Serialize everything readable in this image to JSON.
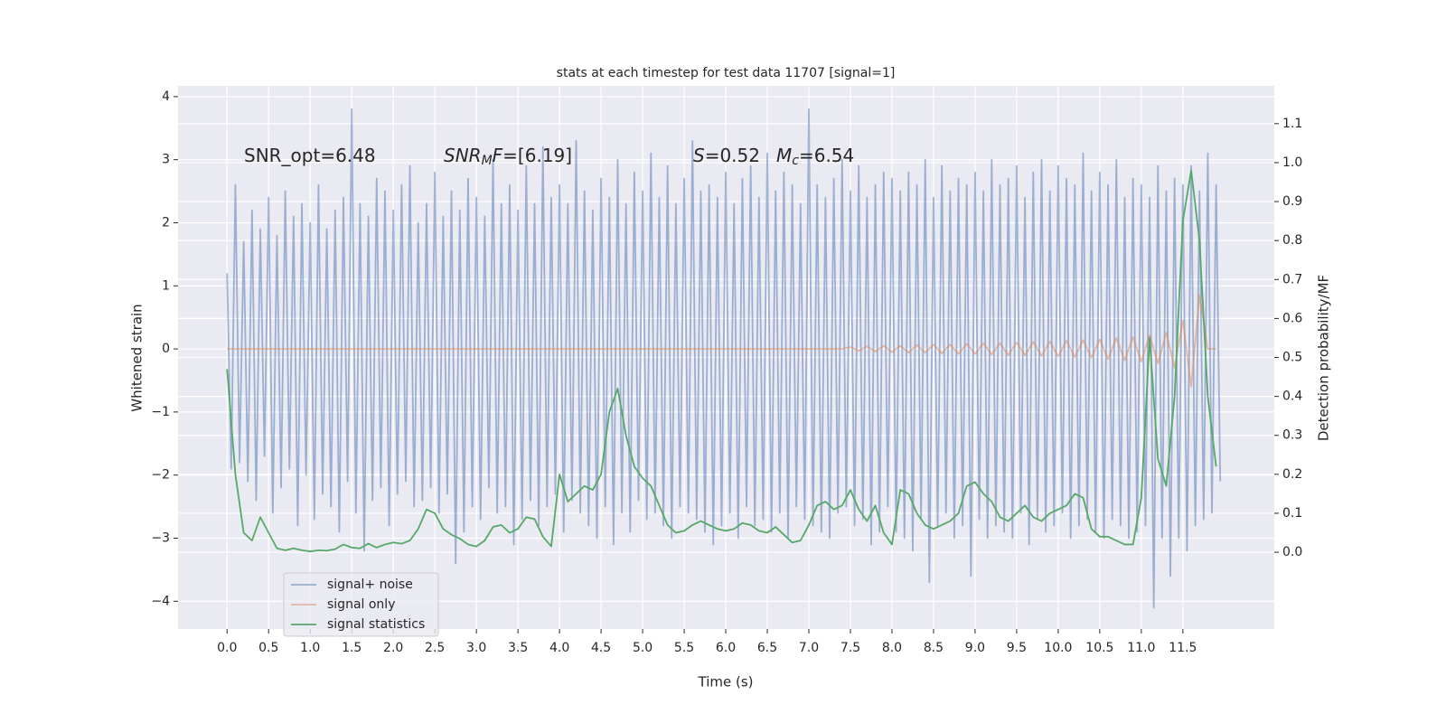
{
  "chart_data": {
    "type": "line",
    "title": "stats at each timestep for test data 11707 [signal=1]",
    "xlabel": "Time (s)",
    "ylabel": "Whitened strain",
    "y2label": "Detection probability/MF",
    "xlim": [
      -0.59,
      12.6
    ],
    "ylim": [
      -4.44,
      4.17
    ],
    "y2lim": [
      -0.197,
      1.197
    ],
    "xticks": [
      {
        "value": 0,
        "label": "0.0"
      },
      0.5,
      {
        "value": 1,
        "label": "1.0"
      },
      1.5,
      {
        "value": 2,
        "label": "2.0"
      },
      2.5,
      {
        "value": 3,
        "label": "3.0"
      },
      3.5,
      {
        "value": 4,
        "label": "4.0"
      },
      4.5,
      {
        "value": 5,
        "label": "5.0"
      },
      5.5,
      {
        "value": 6,
        "label": "6.0"
      },
      6.5,
      {
        "value": 7,
        "label": "7.0"
      },
      7.5,
      {
        "value": 8,
        "label": "8.0"
      },
      8.5,
      {
        "value": 9,
        "label": "9.0"
      },
      9.5,
      {
        "value": 10,
        "label": "10.0"
      },
      10.5,
      {
        "value": 11,
        "label": "11.0"
      },
      11.5
    ],
    "yticks": [
      {
        "value": -4,
        "label": "−4"
      },
      {
        "value": -3,
        "label": "−3"
      },
      {
        "value": -2,
        "label": "−2"
      },
      {
        "value": -1,
        "label": "−1"
      },
      0,
      1,
      2,
      3,
      4
    ],
    "y2ticks": [
      {
        "value": 0,
        "label": "0.0"
      },
      0.1,
      0.2,
      0.3,
      0.4,
      0.5,
      0.6,
      0.7,
      0.8,
      0.9,
      {
        "value": 1,
        "label": "1.0"
      },
      1.1
    ],
    "grid": true,
    "legend": "lower left",
    "annotations": [
      [
        {
          "text": "SNR_opt=6.48"
        }
      ],
      [
        {
          "text": "SNR",
          "style": "italic"
        },
        {
          "text": "M",
          "style": "sub"
        },
        {
          "text": "F",
          "style": "italic"
        },
        {
          "text": "=[6.19]"
        }
      ],
      [
        {
          "text": "S",
          "style": "italic"
        },
        {
          "text": "=0.52"
        }
      ],
      [
        {
          "text": "M",
          "style": "italic"
        },
        {
          "text": "c",
          "style": "sub"
        },
        {
          "text": "=6.54"
        }
      ]
    ],
    "series": [
      {
        "name": "signal+ noise",
        "color": "#4c72b0",
        "alpha": 0.5,
        "x": [
          0,
          0.05,
          0.1,
          0.15,
          0.2,
          0.25,
          0.3,
          0.35,
          0.4,
          0.45,
          0.5,
          0.55,
          0.6,
          0.65,
          0.7,
          0.75,
          0.8,
          0.85,
          0.9,
          0.95,
          1,
          1.05,
          1.1,
          1.15,
          1.2,
          1.25,
          1.3,
          1.35,
          1.4,
          1.45,
          1.5,
          1.55,
          1.6,
          1.65,
          1.7,
          1.75,
          1.8,
          1.85,
          1.9,
          1.95,
          2,
          2.05,
          2.1,
          2.15,
          2.2,
          2.25,
          2.3,
          2.35,
          2.4,
          2.45,
          2.5,
          2.55,
          2.6,
          2.65,
          2.7,
          2.75,
          2.8,
          2.85,
          2.9,
          2.95,
          3,
          3.05,
          3.1,
          3.15,
          3.2,
          3.25,
          3.3,
          3.35,
          3.4,
          3.45,
          3.5,
          3.55,
          3.6,
          3.65,
          3.7,
          3.75,
          3.8,
          3.85,
          3.9,
          3.95,
          4,
          4.05,
          4.1,
          4.15,
          4.2,
          4.25,
          4.3,
          4.35,
          4.4,
          4.45,
          4.5,
          4.55,
          4.6,
          4.65,
          4.7,
          4.75,
          4.8,
          4.85,
          4.9,
          4.95,
          5,
          5.05,
          5.1,
          5.15,
          5.2,
          5.25,
          5.3,
          5.35,
          5.4,
          5.45,
          5.5,
          5.55,
          5.6,
          5.65,
          5.7,
          5.75,
          5.8,
          5.85,
          5.9,
          5.95,
          6,
          6.05,
          6.1,
          6.15,
          6.2,
          6.25,
          6.3,
          6.35,
          6.4,
          6.45,
          6.5,
          6.55,
          6.6,
          6.65,
          6.7,
          6.75,
          6.8,
          6.85,
          6.9,
          6.95,
          7,
          7.05,
          7.1,
          7.15,
          7.2,
          7.25,
          7.3,
          7.35,
          7.4,
          7.45,
          7.5,
          7.55,
          7.6,
          7.65,
          7.7,
          7.75,
          7.8,
          7.85,
          7.9,
          7.95,
          8,
          8.05,
          8.1,
          8.15,
          8.2,
          8.25,
          8.3,
          8.35,
          8.4,
          8.45,
          8.5,
          8.55,
          8.6,
          8.65,
          8.7,
          8.75,
          8.8,
          8.85,
          8.9,
          8.95,
          9,
          9.05,
          9.1,
          9.15,
          9.2,
          9.25,
          9.3,
          9.35,
          9.4,
          9.45,
          9.5,
          9.55,
          9.6,
          9.65,
          9.7,
          9.75,
          9.8,
          9.85,
          9.9,
          9.95,
          10,
          10.05,
          10.1,
          10.15,
          10.2,
          10.25,
          10.3,
          10.35,
          10.4,
          10.45,
          10.5,
          10.55,
          10.6,
          10.65,
          10.7,
          10.75,
          10.8,
          10.85,
          10.9,
          10.95,
          11,
          11.05,
          11.1,
          11.15,
          11.2,
          11.25,
          11.3,
          11.35,
          11.4,
          11.45,
          11.5,
          11.55,
          11.6,
          11.65,
          11.7,
          11.75,
          11.8,
          11.85,
          11.9,
          11.95
        ],
        "values": [
          1.2,
          -1.9,
          2.6,
          -1.8,
          1.7,
          -2.1,
          2.2,
          -2.4,
          1.9,
          -1.7,
          2.4,
          -2.6,
          1.8,
          -2.2,
          2.5,
          -1.9,
          2.1,
          -2.8,
          2.3,
          -2.0,
          2.0,
          -2.7,
          2.6,
          -2.3,
          1.9,
          -2.5,
          2.2,
          -2.9,
          2.4,
          -2.1,
          3.8,
          -2.6,
          2.3,
          -3.2,
          2.1,
          -2.4,
          2.7,
          -2.2,
          2.5,
          -2.8,
          2.2,
          -2.3,
          2.6,
          -2.1,
          2.9,
          -2.5,
          2.0,
          -2.4,
          2.3,
          -2.2,
          2.8,
          -2.6,
          2.1,
          -2.3,
          2.5,
          -3.4,
          2.2,
          -2.9,
          2.7,
          -2.5,
          2.4,
          -2.7,
          2.1,
          -2.2,
          3.0,
          -2.6,
          2.3,
          -2.5,
          2.6,
          -3.1,
          2.2,
          -2.7,
          2.9,
          -2.4,
          2.3,
          -2.8,
          3.2,
          -2.5,
          2.4,
          -2.3,
          2.6,
          -2.9,
          2.3,
          -2.4,
          3.3,
          -2.6,
          2.5,
          -2.8,
          2.2,
          -3.0,
          2.7,
          -2.5,
          2.4,
          -3.1,
          3.0,
          -2.6,
          2.3,
          -2.9,
          2.8,
          -2.4,
          2.5,
          -2.7,
          3.1,
          -2.6,
          2.4,
          -2.8,
          2.9,
          -3.0,
          2.3,
          -2.5,
          2.7,
          -2.6,
          3.3,
          -2.7,
          2.5,
          -2.9,
          2.6,
          -3.1,
          2.4,
          -2.8,
          2.8,
          -2.6,
          2.3,
          -3.0,
          2.7,
          -2.5,
          2.9,
          -2.8,
          2.4,
          -2.7,
          3.1,
          -2.9,
          2.5,
          -2.6,
          2.8,
          -3.0,
          2.6,
          -2.5,
          2.3,
          -2.7,
          3.8,
          -2.8,
          2.6,
          -2.9,
          2.4,
          -3.0,
          2.7,
          -2.6,
          3.0,
          -2.5,
          2.5,
          -2.8,
          2.9,
          -2.7,
          2.4,
          -3.1,
          2.6,
          -2.9,
          2.8,
          -2.5,
          2.7,
          -2.9,
          2.5,
          -3.0,
          2.8,
          -3.2,
          2.6,
          -2.7,
          3.0,
          -3.7,
          2.4,
          -2.8,
          2.9,
          -2.6,
          2.5,
          -3.0,
          2.7,
          -2.8,
          2.6,
          -3.6,
          2.8,
          -2.7,
          2.5,
          -3.0,
          3.0,
          -2.8,
          2.6,
          -2.9,
          2.7,
          -3.0,
          2.9,
          -2.6,
          2.4,
          -3.1,
          2.8,
          -2.7,
          3.0,
          -2.9,
          2.5,
          -2.8,
          2.9,
          -2.6,
          2.7,
          -3.0,
          2.6,
          -2.8,
          3.1,
          -2.7,
          2.5,
          -2.9,
          2.8,
          -3.0,
          2.6,
          -2.7,
          3.0,
          -2.8,
          2.4,
          -3.0,
          2.7,
          -2.9,
          2.6,
          -2.8,
          2.4,
          -4.1,
          2.9,
          -3.0,
          2.5,
          -3.6,
          2.7,
          -3.0,
          2.6,
          -3.2,
          2.9,
          -2.8,
          2.5,
          -2.7,
          3.1,
          -2.6,
          2.6,
          -2.1
        ]
      },
      {
        "name": "signal only",
        "color": "#dd8452",
        "alpha": 0.5,
        "x": [
          0,
          0.1,
          0.2,
          0.3,
          0.4,
          0.5,
          0.6,
          0.7,
          0.8,
          0.9,
          1,
          1.1,
          1.2,
          1.3,
          1.4,
          1.5,
          1.6,
          1.7,
          1.8,
          1.9,
          2,
          2.1,
          2.2,
          2.3,
          2.4,
          2.5,
          2.6,
          2.7,
          2.8,
          2.9,
          3,
          3.1,
          3.2,
          3.3,
          3.4,
          3.5,
          3.6,
          3.7,
          3.8,
          3.9,
          4,
          4.1,
          4.2,
          4.3,
          4.4,
          4.5,
          4.6,
          4.7,
          4.8,
          4.9,
          5,
          5.1,
          5.2,
          5.3,
          5.4,
          5.5,
          5.6,
          5.7,
          5.8,
          5.9,
          6,
          6.1,
          6.2,
          6.3,
          6.4,
          6.5,
          6.6,
          6.7,
          6.8,
          6.9,
          7,
          7.1,
          7.2,
          7.3,
          7.4,
          7.5,
          7.6,
          7.7,
          7.8,
          7.9,
          8,
          8.1,
          8.2,
          8.3,
          8.4,
          8.5,
          8.6,
          8.7,
          8.8,
          8.9,
          9,
          9.1,
          9.2,
          9.3,
          9.4,
          9.5,
          9.6,
          9.7,
          9.8,
          9.9,
          10,
          10.1,
          10.2,
          10.3,
          10.4,
          10.5,
          10.6,
          10.7,
          10.8,
          10.9,
          11,
          11.1,
          11.2,
          11.3,
          11.4,
          11.5,
          11.6,
          11.7,
          11.8,
          11.9
        ],
        "values": [
          0,
          0,
          0,
          0,
          0,
          0,
          0,
          0,
          0,
          0,
          0,
          0,
          0,
          0,
          0,
          0,
          0,
          0,
          0,
          0,
          0,
          0,
          0,
          0,
          0,
          0,
          0,
          0,
          0,
          0,
          0,
          0,
          0,
          0,
          0,
          0,
          0,
          0,
          0,
          0,
          0,
          0,
          0,
          0,
          0,
          0,
          0,
          0,
          0,
          0,
          0,
          0,
          0,
          0,
          0,
          0,
          0,
          0,
          0,
          0,
          0,
          0,
          0,
          0,
          0,
          0,
          0,
          0,
          0,
          0,
          0,
          0,
          0,
          0,
          0,
          0.03,
          -0.03,
          0.04,
          -0.04,
          0.05,
          -0.05,
          0.05,
          -0.06,
          0.06,
          -0.06,
          0.07,
          -0.07,
          0.07,
          -0.08,
          0.08,
          -0.08,
          0.09,
          -0.09,
          0.09,
          -0.1,
          0.1,
          -0.1,
          0.11,
          -0.11,
          0.12,
          -0.12,
          0.13,
          -0.13,
          0.14,
          -0.14,
          0.15,
          -0.16,
          0.17,
          -0.18,
          0.19,
          -0.2,
          0.22,
          -0.23,
          0.26,
          -0.3,
          0.45,
          -0.6,
          0.85,
          0,
          0
        ]
      },
      {
        "name": "signal statistics",
        "color": "#55a868",
        "axis": "y2",
        "x": [
          0,
          0.1,
          0.2,
          0.3,
          0.4,
          0.5,
          0.6,
          0.7,
          0.8,
          0.9,
          1,
          1.1,
          1.2,
          1.3,
          1.4,
          1.5,
          1.6,
          1.7,
          1.8,
          1.9,
          2,
          2.1,
          2.2,
          2.3,
          2.4,
          2.5,
          2.6,
          2.7,
          2.8,
          2.9,
          3,
          3.1,
          3.2,
          3.3,
          3.4,
          3.5,
          3.6,
          3.7,
          3.8,
          3.9,
          4,
          4.1,
          4.2,
          4.3,
          4.4,
          4.5,
          4.6,
          4.7,
          4.8,
          4.9,
          5,
          5.1,
          5.2,
          5.3,
          5.4,
          5.5,
          5.6,
          5.7,
          5.8,
          5.9,
          6,
          6.1,
          6.2,
          6.3,
          6.4,
          6.5,
          6.6,
          6.7,
          6.8,
          6.9,
          7,
          7.1,
          7.2,
          7.3,
          7.4,
          7.5,
          7.6,
          7.7,
          7.8,
          7.9,
          8,
          8.1,
          8.2,
          8.3,
          8.4,
          8.5,
          8.6,
          8.7,
          8.8,
          8.9,
          9,
          9.1,
          9.2,
          9.3,
          9.4,
          9.5,
          9.6,
          9.7,
          9.8,
          9.9,
          10,
          10.1,
          10.2,
          10.3,
          10.4,
          10.5,
          10.6,
          10.7,
          10.8,
          10.9,
          11,
          11.1,
          11.2,
          11.3,
          11.4,
          11.5,
          11.6,
          11.7,
          11.8,
          11.9
        ],
        "values": [
          0.47,
          0.2,
          0.05,
          0.03,
          0.09,
          0.05,
          0.01,
          0.005,
          0.01,
          0.005,
          0.002,
          0.005,
          0.004,
          0.008,
          0.02,
          0.012,
          0.01,
          0.022,
          0.012,
          0.02,
          0.025,
          0.022,
          0.03,
          0.06,
          0.11,
          0.1,
          0.06,
          0.045,
          0.035,
          0.02,
          0.015,
          0.03,
          0.065,
          0.07,
          0.05,
          0.06,
          0.09,
          0.085,
          0.04,
          0.015,
          0.2,
          0.13,
          0.15,
          0.17,
          0.16,
          0.2,
          0.36,
          0.42,
          0.3,
          0.22,
          0.19,
          0.17,
          0.12,
          0.07,
          0.05,
          0.055,
          0.07,
          0.08,
          0.07,
          0.06,
          0.055,
          0.06,
          0.075,
          0.07,
          0.055,
          0.05,
          0.065,
          0.045,
          0.025,
          0.03,
          0.07,
          0.12,
          0.13,
          0.11,
          0.12,
          0.16,
          0.11,
          0.08,
          0.12,
          0.05,
          0.02,
          0.16,
          0.15,
          0.1,
          0.07,
          0.06,
          0.07,
          0.08,
          0.1,
          0.17,
          0.18,
          0.15,
          0.13,
          0.09,
          0.08,
          0.1,
          0.12,
          0.09,
          0.08,
          0.1,
          0.11,
          0.12,
          0.15,
          0.14,
          0.06,
          0.04,
          0.04,
          0.03,
          0.02,
          0.02,
          0.14,
          0.55,
          0.24,
          0.17,
          0.4,
          0.85,
          0.98,
          0.8,
          0.4,
          0.22
        ]
      }
    ]
  }
}
